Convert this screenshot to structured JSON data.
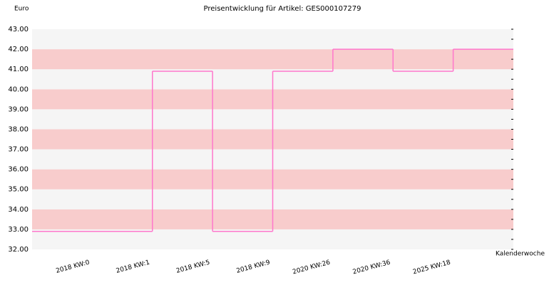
{
  "chart_data": {
    "type": "step-line",
    "title": "Preisentwicklung für Artikel: GES000107279",
    "y_label": "Euro",
    "x_label": "Kalenderwoche",
    "categories": [
      "2018 KW:0",
      "2018 KW:1",
      "2018 KW:5",
      "2018 KW:9",
      "2020 KW:26",
      "2020 KW:36",
      "2025 KW:18"
    ],
    "values": [
      32.9,
      40.9,
      32.9,
      40.9,
      42.0,
      40.9,
      42.0
    ],
    "color": "#ff77cc",
    "ylim": [
      32,
      43
    ],
    "yticks": [
      {
        "value": 32,
        "label": "32.00"
      },
      {
        "value": 33,
        "label": "33.00"
      },
      {
        "value": 34,
        "label": "34.00"
      },
      {
        "value": 35,
        "label": "35.00"
      },
      {
        "value": 36,
        "label": "36.00"
      },
      {
        "value": 37,
        "label": "37.00"
      },
      {
        "value": 38,
        "label": "38.00"
      },
      {
        "value": 39,
        "label": "39.00"
      },
      {
        "value": 40,
        "label": "40.00"
      },
      {
        "value": 41,
        "label": "41.00"
      },
      {
        "value": 42,
        "label": "42.00"
      },
      {
        "value": 43,
        "label": "43.00"
      }
    ],
    "band_colors": [
      "#f8cccc",
      "#f5f5f5"
    ]
  }
}
